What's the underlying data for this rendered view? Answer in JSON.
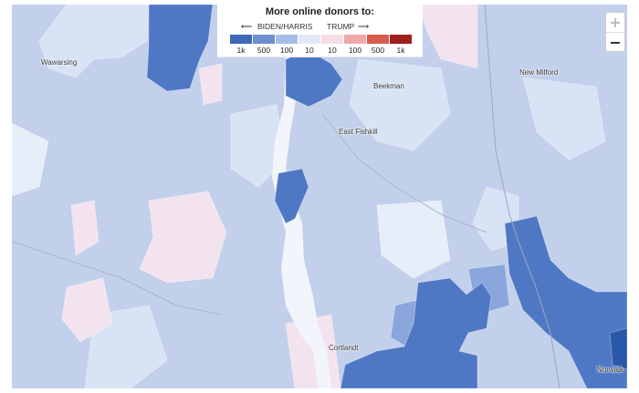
{
  "legend": {
    "title": "More online donors to:",
    "left_label": "BIDEN/HARRIS",
    "right_label": "TRUMP",
    "left_arrow": "⟵",
    "right_arrow": "⟶",
    "ticks": [
      "1k",
      "500",
      "100",
      "10",
      "10",
      "100",
      "500",
      "1k"
    ],
    "colors": [
      "#3f68b8",
      "#6d8fd0",
      "#a8bde6",
      "#e1e9f8",
      "#f6dde6",
      "#f0a7a7",
      "#d95b4e",
      "#9e1f1b"
    ]
  },
  "places": {
    "wawarsing": "Wawarsing",
    "beekman": "Beekman",
    "new_milford": "New Milford",
    "east_fishkill": "East Fishkill",
    "cortlandt": "Cortlandt",
    "norwalk": "Norwalk"
  },
  "zoom": {
    "in": "+",
    "out": "−"
  },
  "map_colors": {
    "base": "#c3d0ec",
    "light": "#d8e3f6",
    "lighter": "#e6eef9",
    "strong": "#4f78c4",
    "medium": "#8aa6dc",
    "darkest": "#2a58a8",
    "pink": "#f3e3ee",
    "water": "#f2f5fb"
  }
}
